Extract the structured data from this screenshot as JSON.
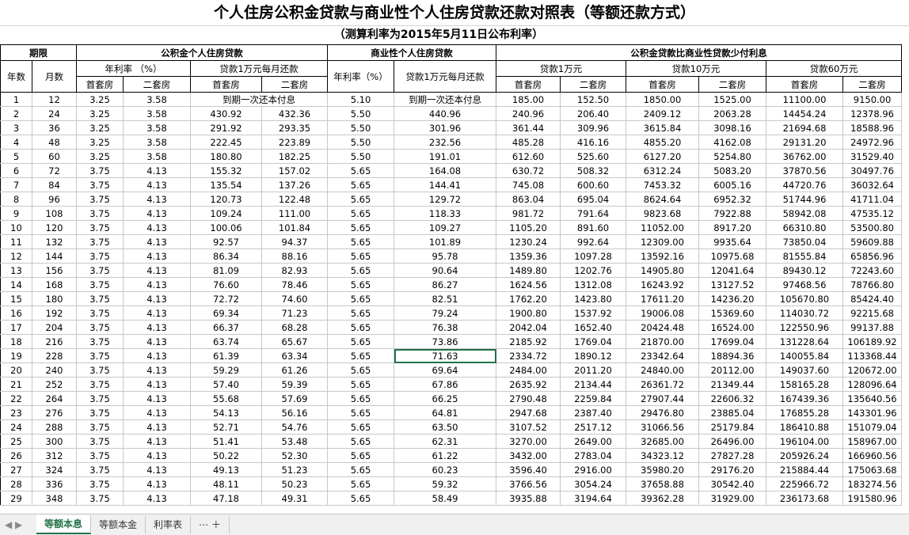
{
  "header": {
    "title": "个人住房公积金贷款与商业性个人住房贷款还款对照表（等额还款方式）",
    "subtitle": "（测算利率为2015年5月11日公布利率）",
    "groups": [
      "期限",
      "公积金个人住房贷款",
      "商业性个人住房贷款",
      "公积金贷款比商业性贷款少付利息"
    ],
    "sub": [
      "年数",
      "月数",
      "年利率 （%）",
      "贷款1万元每月还款",
      "年利率（%）",
      "贷款1万元每月还款",
      "贷款1万元",
      "贷款10万元",
      "贷款60万元"
    ],
    "first": "首套房",
    "second": "二套房"
  },
  "table": {
    "rows": [
      [
        "1",
        "12",
        "3.25",
        "3.58",
        "到期一次还本付息",
        "5.10",
        "到期一次还本付息",
        "185.00",
        "152.50",
        "1850.00",
        "1525.00",
        "11100.00",
        "9150.00"
      ],
      [
        "2",
        "24",
        "3.25",
        "3.58",
        "430.92",
        "432.36",
        "5.50",
        "440.96",
        "240.96",
        "206.40",
        "2409.12",
        "2063.28",
        "14454.24",
        "12378.96"
      ],
      [
        "3",
        "36",
        "3.25",
        "3.58",
        "291.92",
        "293.35",
        "5.50",
        "301.96",
        "361.44",
        "309.96",
        "3615.84",
        "3098.16",
        "21694.68",
        "18588.96"
      ],
      [
        "4",
        "48",
        "3.25",
        "3.58",
        "222.45",
        "223.89",
        "5.50",
        "232.56",
        "485.28",
        "416.16",
        "4855.20",
        "4162.08",
        "29131.20",
        "24972.96"
      ],
      [
        "5",
        "60",
        "3.25",
        "3.58",
        "180.80",
        "182.25",
        "5.50",
        "191.01",
        "612.60",
        "525.60",
        "6127.20",
        "5254.80",
        "36762.00",
        "31529.40"
      ],
      [
        "6",
        "72",
        "3.75",
        "4.13",
        "155.32",
        "157.02",
        "5.65",
        "164.08",
        "630.72",
        "508.32",
        "6312.24",
        "5083.20",
        "37870.56",
        "30497.76"
      ],
      [
        "7",
        "84",
        "3.75",
        "4.13",
        "135.54",
        "137.26",
        "5.65",
        "144.41",
        "745.08",
        "600.60",
        "7453.32",
        "6005.16",
        "44720.76",
        "36032.64"
      ],
      [
        "8",
        "96",
        "3.75",
        "4.13",
        "120.73",
        "122.48",
        "5.65",
        "129.72",
        "863.04",
        "695.04",
        "8624.64",
        "6952.32",
        "51744.96",
        "41711.04"
      ],
      [
        "9",
        "108",
        "3.75",
        "4.13",
        "109.24",
        "111.00",
        "5.65",
        "118.33",
        "981.72",
        "791.64",
        "9823.68",
        "7922.88",
        "58942.08",
        "47535.12"
      ],
      [
        "10",
        "120",
        "3.75",
        "4.13",
        "100.06",
        "101.84",
        "5.65",
        "109.27",
        "1105.20",
        "891.60",
        "11052.00",
        "8917.20",
        "66310.80",
        "53500.80"
      ],
      [
        "11",
        "132",
        "3.75",
        "4.13",
        "92.57",
        "94.37",
        "5.65",
        "101.89",
        "1230.24",
        "992.64",
        "12309.00",
        "9935.64",
        "73850.04",
        "59609.88"
      ],
      [
        "12",
        "144",
        "3.75",
        "4.13",
        "86.34",
        "88.16",
        "5.65",
        "95.78",
        "1359.36",
        "1097.28",
        "13592.16",
        "10975.68",
        "81555.84",
        "65856.96"
      ],
      [
        "13",
        "156",
        "3.75",
        "4.13",
        "81.09",
        "82.93",
        "5.65",
        "90.64",
        "1489.80",
        "1202.76",
        "14905.80",
        "12041.64",
        "89430.12",
        "72243.60"
      ],
      [
        "14",
        "168",
        "3.75",
        "4.13",
        "76.60",
        "78.46",
        "5.65",
        "86.27",
        "1624.56",
        "1312.08",
        "16243.92",
        "13127.52",
        "97468.56",
        "78766.80"
      ],
      [
        "15",
        "180",
        "3.75",
        "4.13",
        "72.72",
        "74.60",
        "5.65",
        "82.51",
        "1762.20",
        "1423.80",
        "17611.20",
        "14236.20",
        "105670.80",
        "85424.40"
      ],
      [
        "16",
        "192",
        "3.75",
        "4.13",
        "69.34",
        "71.23",
        "5.65",
        "79.24",
        "1900.80",
        "1537.92",
        "19006.08",
        "15369.60",
        "114030.72",
        "92215.68"
      ],
      [
        "17",
        "204",
        "3.75",
        "4.13",
        "66.37",
        "68.28",
        "5.65",
        "76.38",
        "2042.04",
        "1652.40",
        "20424.48",
        "16524.00",
        "122550.96",
        "99137.88"
      ],
      [
        "18",
        "216",
        "3.75",
        "4.13",
        "63.74",
        "65.67",
        "5.65",
        "73.86",
        "2185.92",
        "1769.04",
        "21870.00",
        "17699.04",
        "131228.64",
        "106189.92"
      ],
      [
        "19",
        "228",
        "3.75",
        "4.13",
        "61.39",
        "63.34",
        "5.65",
        "71.63",
        "2334.72",
        "1890.12",
        "23342.64",
        "18894.36",
        "140055.84",
        "113368.44"
      ],
      [
        "20",
        "240",
        "3.75",
        "4.13",
        "59.29",
        "61.26",
        "5.65",
        "69.64",
        "2484.00",
        "2011.20",
        "24840.00",
        "20112.00",
        "149037.60",
        "120672.00"
      ],
      [
        "21",
        "252",
        "3.75",
        "4.13",
        "57.40",
        "59.39",
        "5.65",
        "67.86",
        "2635.92",
        "2134.44",
        "26361.72",
        "21349.44",
        "158165.28",
        "128096.64"
      ],
      [
        "22",
        "264",
        "3.75",
        "4.13",
        "55.68",
        "57.69",
        "5.65",
        "66.25",
        "2790.48",
        "2259.84",
        "27907.44",
        "22606.32",
        "167439.36",
        "135640.56"
      ],
      [
        "23",
        "276",
        "3.75",
        "4.13",
        "54.13",
        "56.16",
        "5.65",
        "64.81",
        "2947.68",
        "2387.40",
        "29476.80",
        "23885.04",
        "176855.28",
        "143301.96"
      ],
      [
        "24",
        "288",
        "3.75",
        "4.13",
        "52.71",
        "54.76",
        "5.65",
        "63.50",
        "3107.52",
        "2517.12",
        "31066.56",
        "25179.84",
        "186410.88",
        "151079.04"
      ],
      [
        "25",
        "300",
        "3.75",
        "4.13",
        "51.41",
        "53.48",
        "5.65",
        "62.31",
        "3270.00",
        "2649.00",
        "32685.00",
        "26496.00",
        "196104.00",
        "158967.00"
      ],
      [
        "26",
        "312",
        "3.75",
        "4.13",
        "50.22",
        "52.30",
        "5.65",
        "61.22",
        "3432.00",
        "2783.04",
        "34323.12",
        "27827.28",
        "205926.24",
        "166960.56"
      ],
      [
        "27",
        "324",
        "3.75",
        "4.13",
        "49.13",
        "51.23",
        "5.65",
        "60.23",
        "3596.40",
        "2916.00",
        "35980.20",
        "29176.20",
        "215884.44",
        "175063.68"
      ],
      [
        "28",
        "336",
        "3.75",
        "4.13",
        "48.11",
        "50.23",
        "5.65",
        "59.32",
        "3766.56",
        "3054.24",
        "37658.88",
        "30542.40",
        "225966.72",
        "183274.56"
      ],
      [
        "29",
        "348",
        "3.75",
        "4.13",
        "47.18",
        "49.31",
        "5.65",
        "58.49",
        "3935.88",
        "3194.64",
        "39362.28",
        "31929.00",
        "236173.68",
        "191580.96"
      ]
    ]
  },
  "tabs": [
    "等额本息",
    "等额本金",
    "利率表"
  ]
}
